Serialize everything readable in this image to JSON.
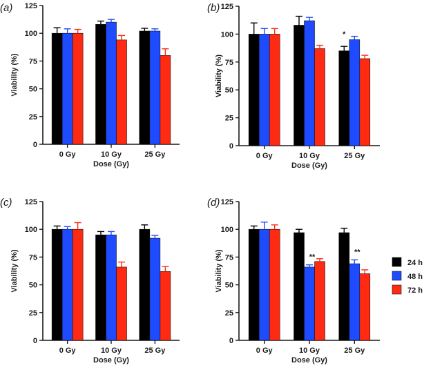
{
  "chart_data": [
    {
      "type": "bar",
      "panel_label": "(a)",
      "categories": [
        "0 Gy",
        "10 Gy",
        "25 Gy"
      ],
      "xlabel": "Dose (Gy)",
      "ylabel": "Viability (%)",
      "ylim": [
        0,
        125
      ],
      "yticks": [
        0,
        25,
        50,
        75,
        100,
        125
      ],
      "series": [
        {
          "values": [
            100,
            108,
            102
          ],
          "errors": [
            5,
            3,
            2.5
          ]
        },
        {
          "values": [
            100,
            110,
            102
          ],
          "errors": [
            4,
            2.5,
            2
          ]
        },
        {
          "values": [
            100,
            94,
            80
          ],
          "errors": [
            3.5,
            4,
            6
          ]
        }
      ],
      "annotations": [
        "",
        "",
        ""
      ]
    },
    {
      "type": "bar",
      "panel_label": "(b)",
      "categories": [
        "0 Gy",
        "10 Gy",
        "25 Gy"
      ],
      "xlabel": "Dose (Gy)",
      "ylabel": "Viability (%)",
      "ylim": [
        0,
        125
      ],
      "yticks": [
        0,
        25,
        50,
        75,
        100,
        125
      ],
      "series": [
        {
          "values": [
            100,
            108,
            85
          ],
          "errors": [
            10,
            8,
            4
          ]
        },
        {
          "values": [
            100,
            112,
            95
          ],
          "errors": [
            5,
            3,
            3
          ]
        },
        {
          "values": [
            100,
            87,
            78
          ],
          "errors": [
            5,
            3,
            3
          ]
        }
      ],
      "annotations": [
        "",
        "",
        "*"
      ]
    },
    {
      "type": "bar",
      "panel_label": "(c)",
      "categories": [
        "0 Gy",
        "10 Gy",
        "25 Gy"
      ],
      "xlabel": "Dose (Gy)",
      "ylabel": "Viability (%)",
      "ylim": [
        0,
        125
      ],
      "yticks": [
        0,
        25,
        50,
        75,
        100,
        125
      ],
      "series": [
        {
          "values": [
            100,
            95,
            100
          ],
          "errors": [
            3,
            3,
            4
          ]
        },
        {
          "values": [
            100,
            95,
            92
          ],
          "errors": [
            2.5,
            3,
            2.5
          ]
        },
        {
          "values": [
            100,
            66,
            62
          ],
          "errors": [
            6,
            4.5,
            4.5
          ]
        }
      ],
      "annotations": [
        "",
        "",
        ""
      ]
    },
    {
      "type": "bar",
      "panel_label": "(d)",
      "categories": [
        "0 Gy",
        "10 Gy",
        "25 Gy"
      ],
      "xlabel": "Dose (Gy)",
      "ylabel": "Viability (%)",
      "ylim": [
        0,
        125
      ],
      "yticks": [
        0,
        25,
        50,
        75,
        100,
        125
      ],
      "series": [
        {
          "values": [
            100,
            97,
            97
          ],
          "errors": [
            3,
            3,
            4
          ]
        },
        {
          "values": [
            100,
            66,
            69
          ],
          "errors": [
            6.5,
            2,
            3.5
          ]
        },
        {
          "values": [
            100,
            71,
            60
          ],
          "errors": [
            4,
            2.5,
            3.5
          ]
        }
      ],
      "annotations": [
        "",
        "**",
        "**"
      ]
    }
  ],
  "legend": {
    "items": [
      {
        "label": "24 h",
        "color": "#000000"
      },
      {
        "label": "48 h",
        "color": "#1f4bff"
      },
      {
        "label": "72 h",
        "color": "#ff2a12"
      }
    ]
  },
  "colors": {
    "axis": "#1a1a1a",
    "bar_edge": "#111111"
  }
}
